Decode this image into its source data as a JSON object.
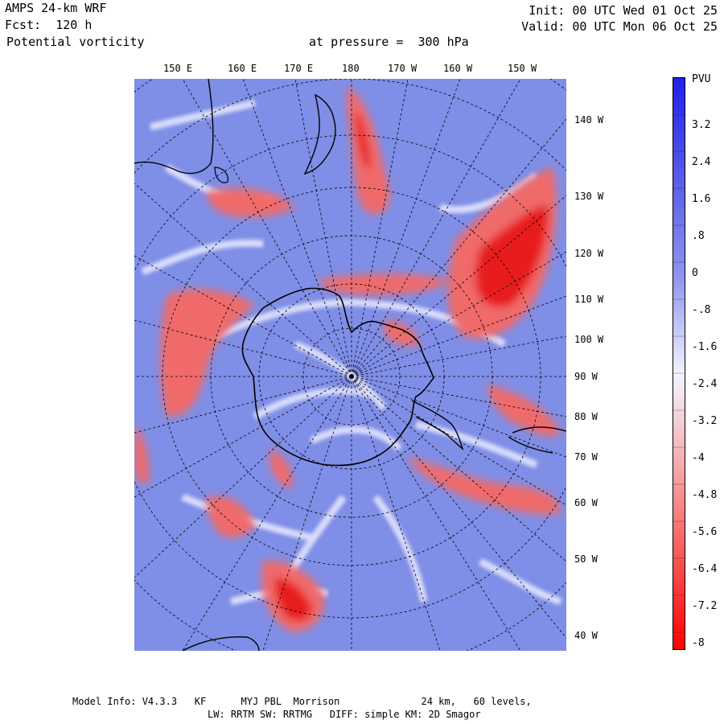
{
  "header": {
    "model": "AMPS 24-km WRF",
    "forecast": "Fcst:  120 h",
    "field": "Potential vorticity",
    "level": "at pressure =  300 hPa",
    "init": "Init: 00 UTC Wed 01 Oct 25",
    "valid": "Valid: 00 UTC Mon 06 Oct 25"
  },
  "top_longitudes": [
    "150 E",
    "160 E",
    "170 E",
    "180",
    "170 W",
    "160 W",
    "150 W"
  ],
  "right_longitudes": [
    "140 W",
    "130 W",
    "120 W",
    "110 W",
    "100 W",
    "90 W",
    "80 W",
    "70 W",
    "60 W",
    "50 W",
    "40 W"
  ],
  "colorbar": {
    "unit": "PVU",
    "labels": [
      "3.2",
      "2.4",
      "1.6",
      ".8",
      "0",
      "-.8",
      "-1.6",
      "-2.4",
      "-3.2",
      "-4",
      "-4.8",
      "-5.6",
      "-6.4",
      "-7.2",
      "-8"
    ],
    "colors": {
      "top": "#2020e8",
      "upper": "#8f96ee",
      "mid": "#f4f4ff",
      "lower": "#f5a0a0",
      "bottom": "#ff0000"
    }
  },
  "map_colors": {
    "background": "#7f8ee6",
    "light": "#e8eaff",
    "red": "#f06a6a",
    "deep_red": "#e81c1c"
  },
  "footer": {
    "line1": "Model Info: V4.3.3   KF      MYJ PBL  Morrison              24 km,   60 levels,",
    "line2": "LW: RRTM SW: RRTMG   DIFF: simple KM: 2D Smagor"
  }
}
